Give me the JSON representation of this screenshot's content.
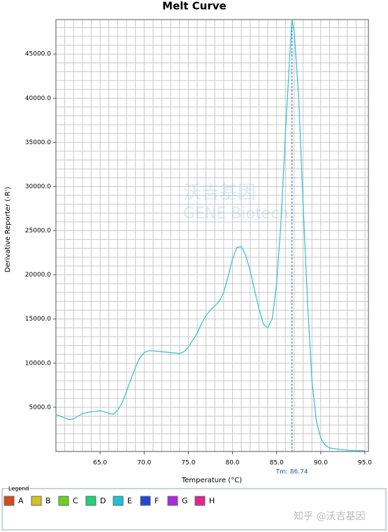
{
  "chart_data": {
    "type": "line",
    "title": "Melt Curve",
    "x_label": "Temperature (°C)",
    "y_label": "Derivative Reporter (-R')",
    "x": [
      60,
      61,
      61.5,
      62,
      63,
      64,
      65,
      65.5,
      66,
      66.5,
      67,
      67.5,
      68,
      68.5,
      69,
      69.5,
      70,
      70.5,
      71,
      72,
      73,
      74,
      74.5,
      75,
      75.5,
      76,
      76.5,
      77,
      77.5,
      78,
      78.5,
      79,
      79.5,
      80,
      80.5,
      81,
      81.5,
      82,
      82.5,
      83,
      83.5,
      84,
      84.5,
      85,
      85.5,
      86,
      86.5,
      86.74,
      87,
      87.5,
      88,
      88.5,
      89,
      89.5,
      90,
      90.5,
      91,
      92,
      93,
      94,
      95
    ],
    "values": [
      4200,
      3800,
      3600,
      3700,
      4300,
      4500,
      4600,
      4500,
      4300,
      4200,
      4700,
      5500,
      6800,
      8200,
      9500,
      10600,
      11200,
      11400,
      11400,
      11300,
      11200,
      11100,
      11300,
      11800,
      12600,
      13400,
      14500,
      15400,
      16000,
      16500,
      17000,
      18000,
      19800,
      21800,
      23100,
      23200,
      22200,
      20500,
      18300,
      16200,
      14400,
      14000,
      15000,
      19000,
      26000,
      36000,
      45000,
      48900,
      47500,
      40000,
      28000,
      17000,
      8000,
      3500,
      1500,
      700,
      400,
      250,
      150,
      100,
      80
    ],
    "color": "#3cc4d6",
    "xlim": [
      60,
      95.4
    ],
    "ylim": [
      0,
      48900
    ],
    "xticks": [
      {
        "value": 65,
        "label": "65.0"
      },
      {
        "value": 70,
        "label": "70.0"
      },
      {
        "value": 75,
        "label": "75.0"
      },
      {
        "value": 80,
        "label": "80.0"
      },
      {
        "value": 85,
        "label": "85.0"
      },
      {
        "value": 90,
        "label": "90.0"
      },
      {
        "value": 95,
        "label": "95.0"
      }
    ],
    "yticks": [
      {
        "value": 5000,
        "label": "5000.0"
      },
      {
        "value": 10000,
        "label": "10000.0"
      },
      {
        "value": 15000,
        "label": "15000.0"
      },
      {
        "value": 20000,
        "label": "20000.0"
      },
      {
        "value": 25000,
        "label": "25000.0"
      },
      {
        "value": 30000,
        "label": "30000.0"
      },
      {
        "value": 35000,
        "label": "35000.0"
      },
      {
        "value": 40000,
        "label": "40000.0"
      },
      {
        "value": 45000,
        "label": "45000.0"
      }
    ],
    "grid": true,
    "grid_x_step": 1,
    "grid_y_step": 1000,
    "tm": {
      "value": 86.74,
      "label": "Tm: 86.74"
    },
    "watermark": {
      "cn": "沃吉基因",
      "en": "GENE Biotech"
    },
    "legend_title": "Legend",
    "legend_items": [
      {
        "label": "A",
        "color": "#d84a1e"
      },
      {
        "label": "B",
        "color": "#d4c21e"
      },
      {
        "label": "C",
        "color": "#66d41e"
      },
      {
        "label": "D",
        "color": "#1ed27a"
      },
      {
        "label": "E",
        "color": "#1ec2da"
      },
      {
        "label": "F",
        "color": "#2448d4"
      },
      {
        "label": "G",
        "color": "#a82ae0"
      },
      {
        "label": "H",
        "color": "#e0288c"
      }
    ]
  },
  "footer": "知乎 @沃吉基因"
}
